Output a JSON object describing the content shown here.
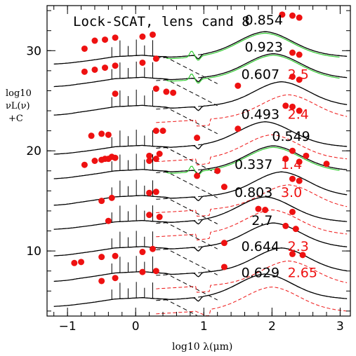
{
  "chart_data": {
    "type": "line",
    "title": "Lock-SCAT, lens cand 8",
    "xlabel": "log10 λ(μm)",
    "ylabel": [
      "log10",
      "νL(ν)",
      "+C"
    ],
    "xlim": [
      -1.3,
      3.15
    ],
    "ylim": [
      3.5,
      34.5
    ],
    "xticks": [
      -1,
      0,
      1,
      2,
      3
    ],
    "yticks": [
      10,
      20,
      30
    ],
    "grid": false,
    "colors": {
      "axis": "#000000",
      "model": "#000000",
      "green": "#33cc33",
      "red": "#ee1111"
    },
    "series": [
      {
        "label": "0.854",
        "label2": "",
        "label_x": 1.6,
        "label_y": 32.6,
        "offset": 30.2,
        "red": false,
        "green": true
      },
      {
        "label": "0.923",
        "label2": "",
        "label_x": 1.6,
        "label_y": 29.9,
        "offset": 28.0,
        "red": false,
        "green": true
      },
      {
        "label": "0.607",
        "label2": "2.5",
        "label_x": 1.55,
        "label_y": 27.2,
        "offset": 25.2,
        "red": true,
        "green": false
      },
      {
        "label": "0.493",
        "label2": "2.4",
        "label_x": 1.55,
        "label_y": 23.2,
        "offset": 21.2,
        "red": true,
        "green": false
      },
      {
        "label": "0.549",
        "label2": "",
        "label_x": 2.0,
        "label_y": 21.0,
        "offset": 18.8,
        "red": false,
        "green": true
      },
      {
        "label": "0.337",
        "label2": "1.4",
        "label_x": 1.45,
        "label_y": 18.2,
        "offset": 16.2,
        "red": true,
        "green": false
      },
      {
        "label": "0.803",
        "label2": "3.0",
        "label_x": 1.45,
        "label_y": 15.4,
        "offset": 13.7,
        "red": true,
        "green": false
      },
      {
        "label": "2.7",
        "label2": "",
        "label_x": 1.7,
        "label_y": 12.6,
        "offset": 11.1,
        "red": false,
        "green": false
      },
      {
        "label": "0.644",
        "label2": "2.3",
        "label_x": 1.55,
        "label_y": 10.0,
        "offset": 8.6,
        "red": true,
        "green": false
      },
      {
        "label": "0.629",
        "label2": "2.65",
        "label_x": 1.55,
        "label_y": 7.4,
        "offset": 6.0,
        "red": true,
        "green": false
      }
    ],
    "points": [
      [
        [
          -0.75,
          30.2
        ],
        [
          -0.6,
          31.0
        ],
        [
          -0.45,
          31.1
        ],
        [
          -0.3,
          31.3
        ],
        [
          0.1,
          31.4
        ],
        [
          0.25,
          31.6
        ],
        [
          2.15,
          33.6
        ],
        [
          2.3,
          33.5
        ],
        [
          2.4,
          33.3
        ]
      ],
      [
        [
          -0.75,
          27.9
        ],
        [
          -0.6,
          28.1
        ],
        [
          -0.45,
          28.3
        ],
        [
          -0.3,
          28.5
        ],
        [
          0.1,
          28.8
        ],
        [
          0.3,
          29.2
        ],
        [
          2.3,
          29.8
        ],
        [
          2.4,
          29.6
        ]
      ],
      [
        [
          -0.3,
          25.7
        ],
        [
          0.3,
          26.2
        ],
        [
          0.45,
          25.9
        ],
        [
          0.55,
          25.8
        ],
        [
          1.5,
          26.5
        ],
        [
          2.3,
          27.4
        ],
        [
          2.4,
          27.1
        ]
      ],
      [
        [
          -0.65,
          21.5
        ],
        [
          -0.5,
          21.7
        ],
        [
          -0.4,
          21.6
        ],
        [
          0.3,
          22.0
        ],
        [
          0.4,
          22.0
        ],
        [
          0.9,
          21.3
        ],
        [
          1.5,
          22.2
        ],
        [
          2.2,
          24.5
        ],
        [
          2.3,
          24.4
        ],
        [
          2.4,
          24.0
        ]
      ],
      [
        [
          -0.75,
          18.6
        ],
        [
          -0.6,
          19.0
        ],
        [
          -0.45,
          19.2
        ],
        [
          -0.35,
          19.4
        ],
        [
          0.2,
          19.5
        ],
        [
          0.35,
          19.7
        ],
        [
          2.3,
          20.0
        ],
        [
          2.5,
          19.5
        ],
        [
          2.8,
          18.7
        ]
      ],
      [
        [
          -0.5,
          19.1
        ],
        [
          -0.4,
          19.2
        ],
        [
          -0.3,
          19.3
        ],
        [
          0.2,
          19.0
        ],
        [
          0.3,
          19.2
        ],
        [
          0.9,
          17.5
        ],
        [
          1.2,
          18.0
        ],
        [
          2.2,
          19.2
        ],
        [
          2.4,
          18.9
        ]
      ],
      [
        [
          -0.5,
          15.0
        ],
        [
          -0.35,
          15.3
        ],
        [
          0.2,
          15.8
        ],
        [
          0.3,
          15.9
        ],
        [
          1.3,
          16.4
        ],
        [
          2.3,
          17.2
        ],
        [
          2.4,
          17.0
        ]
      ],
      [
        [
          -0.4,
          13.0
        ],
        [
          0.2,
          13.6
        ],
        [
          0.35,
          13.4
        ],
        [
          1.8,
          14.2
        ],
        [
          1.9,
          14.1
        ],
        [
          2.3,
          13.9
        ]
      ],
      [
        [
          -0.9,
          8.8
        ],
        [
          -0.8,
          8.9
        ],
        [
          -0.5,
          9.4
        ],
        [
          -0.3,
          9.5
        ],
        [
          0.1,
          9.9
        ],
        [
          0.25,
          10.2
        ],
        [
          1.3,
          10.8
        ],
        [
          2.2,
          12.5
        ],
        [
          2.35,
          12.2
        ]
      ],
      [
        [
          -0.5,
          7.0
        ],
        [
          -0.3,
          7.3
        ],
        [
          0.1,
          7.9
        ],
        [
          0.3,
          8.0
        ],
        [
          1.3,
          8.4
        ],
        [
          2.3,
          9.7
        ],
        [
          2.45,
          9.6
        ]
      ]
    ]
  }
}
